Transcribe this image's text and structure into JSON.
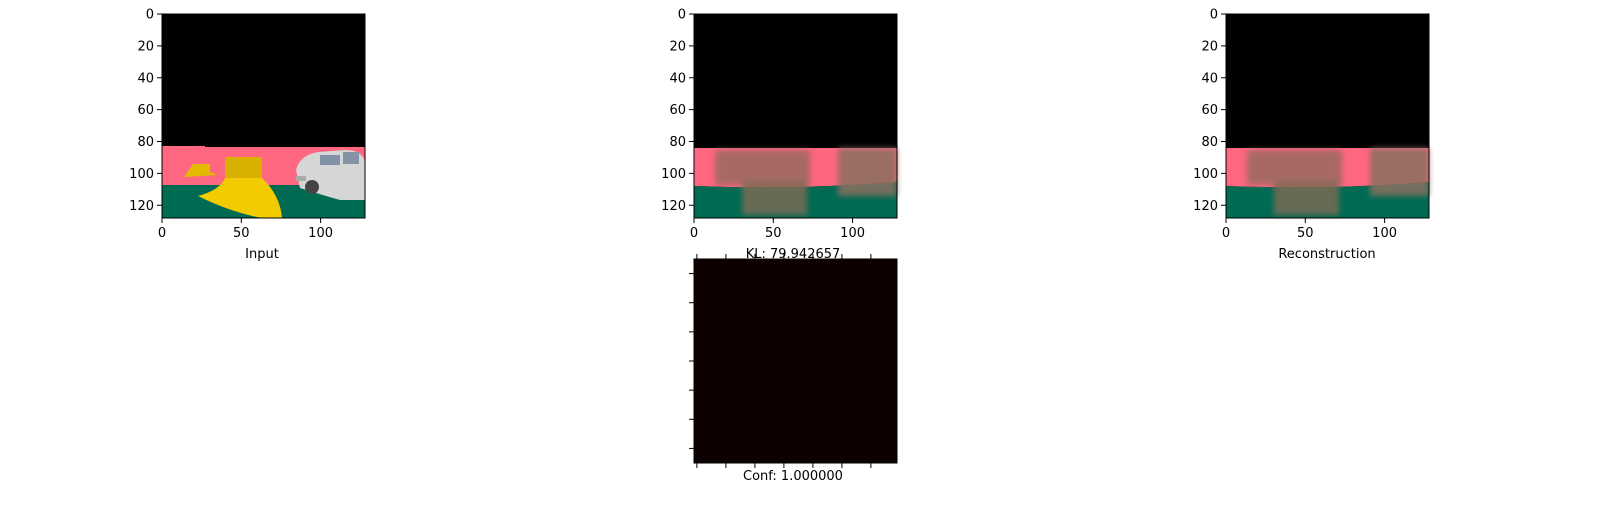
{
  "chart_data": [
    {
      "type": "image",
      "xlabel": "Input",
      "xticks": [
        0,
        50,
        100
      ],
      "yticks": [
        0,
        20,
        40,
        60,
        80,
        100,
        120
      ],
      "xlim": [
        0,
        128
      ],
      "ylim": [
        128,
        0
      ],
      "colors": {
        "sky": "#000000",
        "ground_pink": "#ff6680",
        "ground_green": "#006a53",
        "yellow_object": "#f2cc00",
        "car": "#d9d9d9"
      }
    },
    {
      "type": "image",
      "xlabel": "KL: 79.942657",
      "xticks": [
        0,
        50,
        100
      ],
      "yticks": [
        0,
        20,
        40,
        60,
        80,
        100,
        120
      ],
      "xlim": [
        0,
        128
      ],
      "ylim": [
        128,
        0
      ],
      "colors": {
        "sky": "#000000",
        "ground_pink": "#ff6680",
        "ground_green": "#006a53",
        "blur": "#8a6a5a"
      }
    },
    {
      "type": "image",
      "xlabel": "Reconstruction",
      "xticks": [
        0,
        50,
        100
      ],
      "yticks": [
        0,
        20,
        40,
        60,
        80,
        100,
        120
      ],
      "xlim": [
        0,
        128
      ],
      "ylim": [
        128,
        0
      ],
      "colors": {
        "sky": "#000000",
        "ground_pink": "#ff6680",
        "ground_green": "#006a53",
        "blur": "#8a6a5a"
      }
    },
    {
      "type": "heatmap",
      "xlabel": "Conf: 1.000000",
      "fill": "#0d0000",
      "xtick_count": 7,
      "ytick_count": 7
    }
  ]
}
